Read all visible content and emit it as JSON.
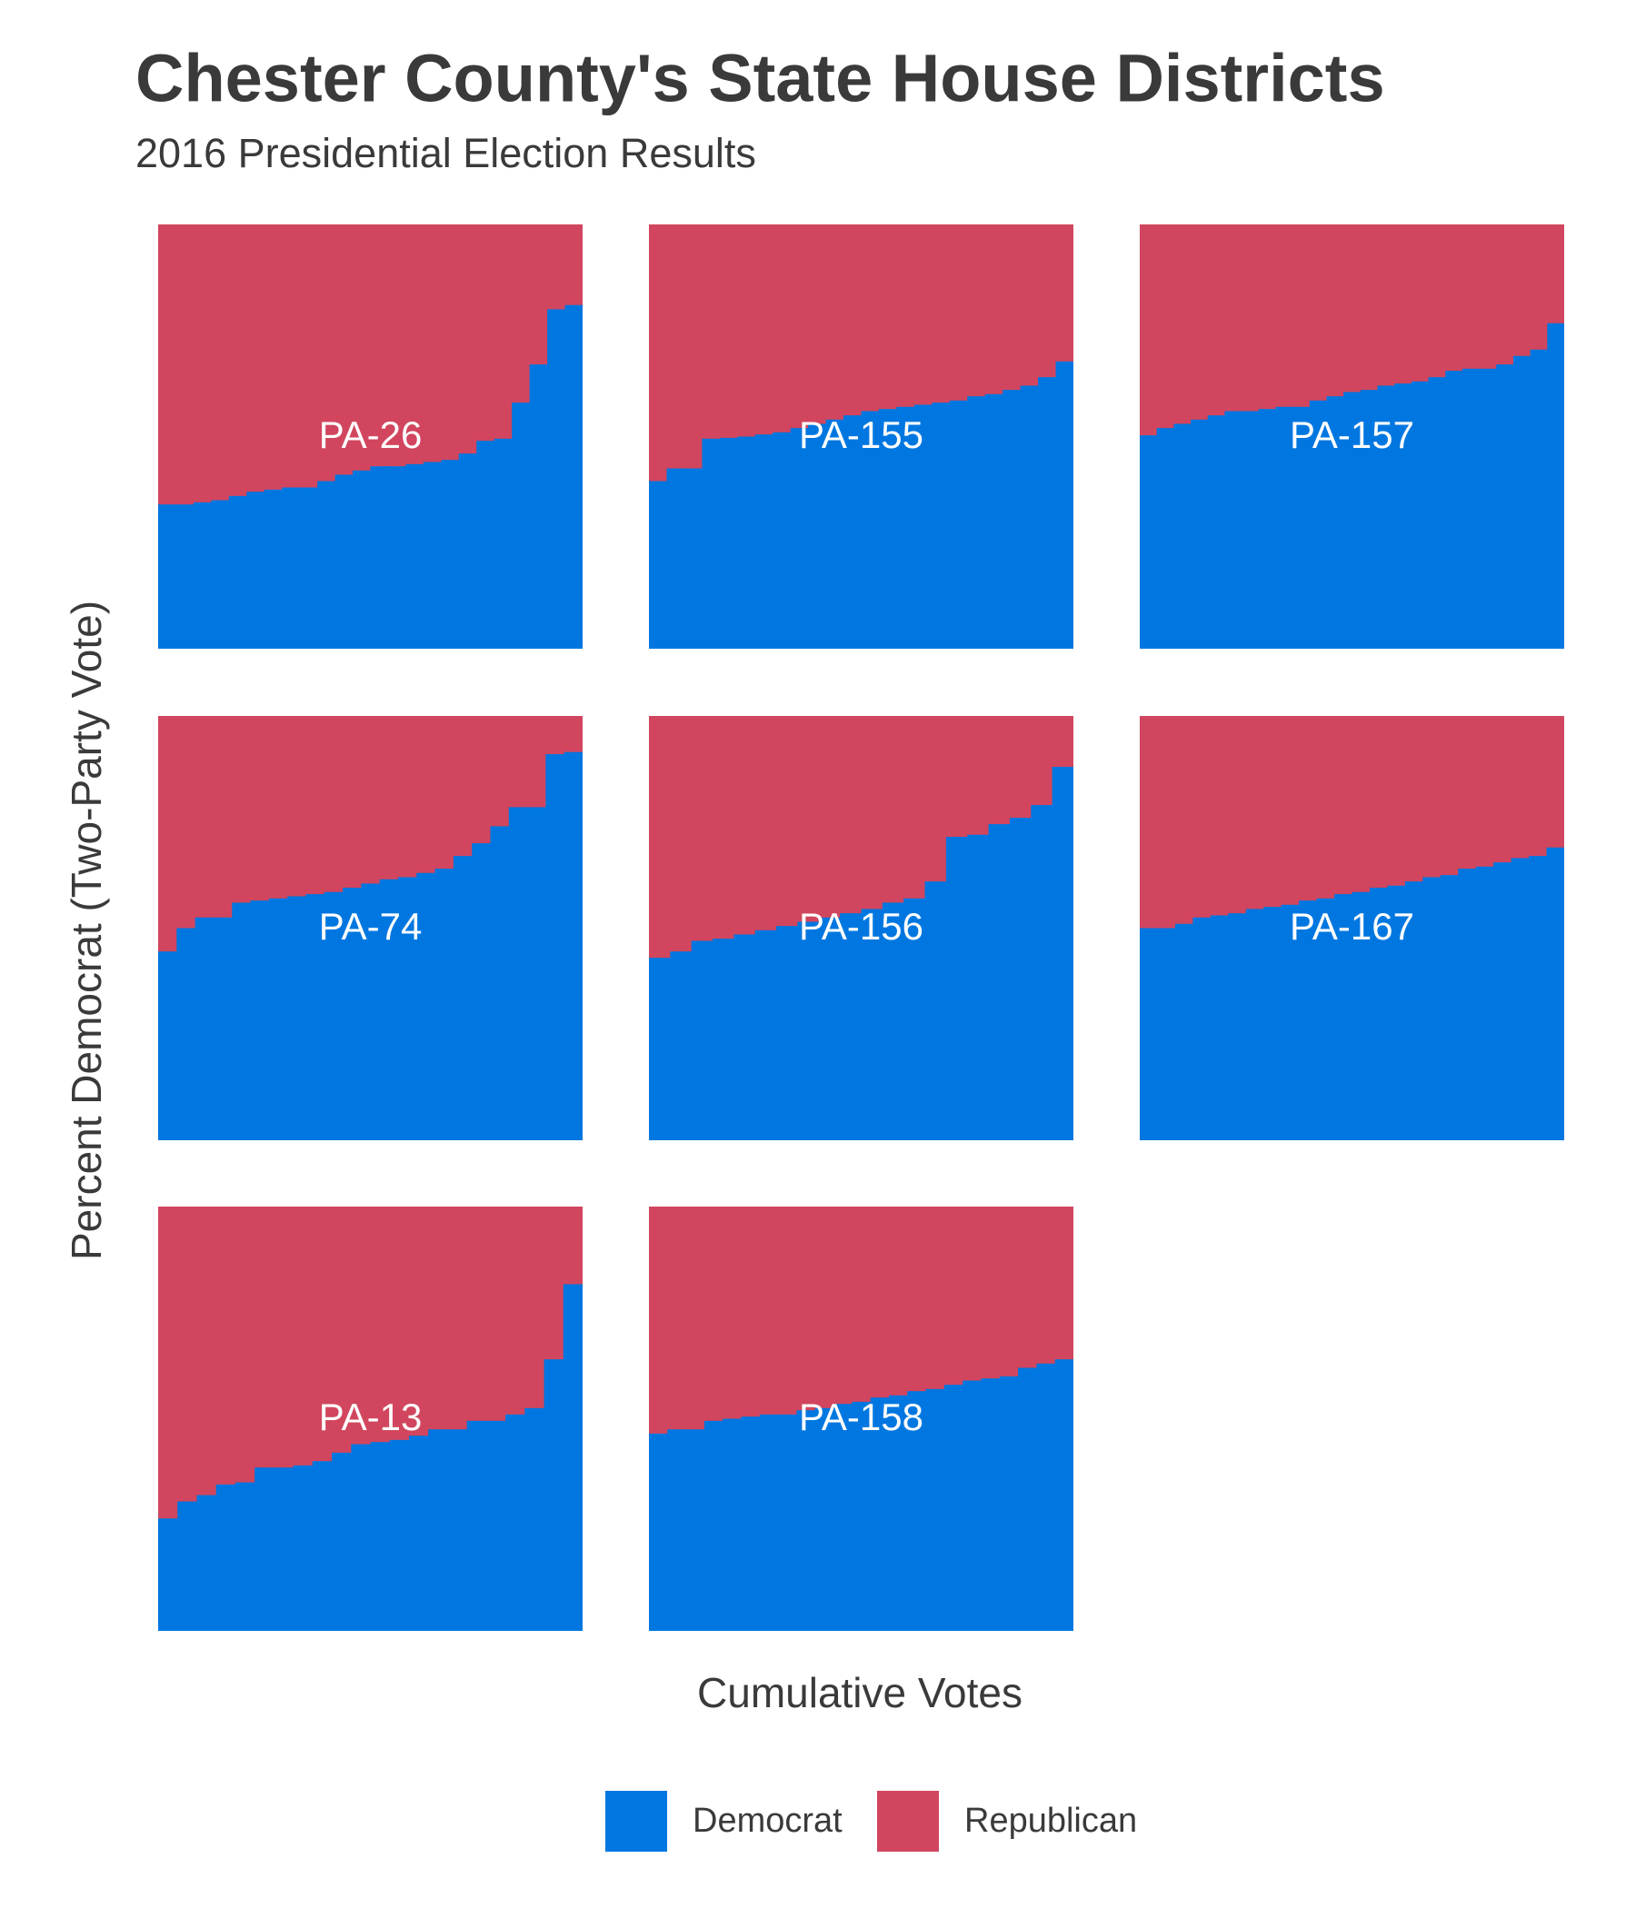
{
  "chart_data": {
    "type": "step-area",
    "title": "Chester County's State House Districts",
    "subtitle": "2016 Presidential Election Results",
    "x_label": "Cumulative Votes",
    "y_label": "Percent Democrat (Two-Party Vote)",
    "ylim": [
      0,
      100
    ],
    "series": [
      {
        "name": "Democrat",
        "color": "#0077e0"
      },
      {
        "name": "Republican",
        "color": "#d1465e"
      }
    ],
    "panels": [
      {
        "label": "PA-26",
        "values": [
          34,
          34,
          34.5,
          35,
          36,
          37,
          37.5,
          38,
          38,
          39.5,
          41,
          42,
          43,
          43,
          43.5,
          44,
          44.5,
          46,
          49,
          49.5,
          58,
          67,
          80,
          81
        ]
      },
      {
        "label": "PA-155",
        "values": [
          39.5,
          42.5,
          42.5,
          49.5,
          49.7,
          50,
          50.5,
          51,
          52,
          53,
          54,
          55,
          56,
          56.5,
          57,
          57.5,
          58,
          58.5,
          59.5,
          60,
          61,
          62,
          64,
          67.7
        ]
      },
      {
        "label": "PA-157",
        "values": [
          50.3,
          52,
          53,
          54,
          55,
          56,
          56,
          56.5,
          57,
          57,
          58.5,
          59.5,
          60.5,
          61,
          62,
          62.5,
          63,
          64,
          65.5,
          66,
          66,
          67,
          69,
          70.5,
          76.7
        ]
      },
      {
        "label": "PA-74",
        "values": [
          44.5,
          50,
          52.5,
          52.5,
          56,
          56.5,
          57,
          57.5,
          58,
          58.5,
          59.5,
          60.5,
          61.5,
          62,
          63,
          64,
          67,
          70,
          74,
          78.5,
          78.5,
          91,
          91.5
        ]
      },
      {
        "label": "PA-156",
        "values": [
          43,
          44.5,
          47,
          47.5,
          48.5,
          49.5,
          50.5,
          51.5,
          52.5,
          53.5,
          54.5,
          56,
          57,
          61,
          71.5,
          72,
          74.5,
          76,
          79,
          88
        ]
      },
      {
        "label": "PA-167",
        "values": [
          50,
          50,
          51,
          52.5,
          53,
          53.5,
          54.5,
          55,
          55.5,
          56.5,
          57,
          58,
          58.5,
          59.5,
          60,
          61,
          62,
          62.5,
          64,
          64.5,
          65.5,
          66.5,
          67,
          69
        ]
      },
      {
        "label": "PA-13",
        "values": [
          26.5,
          30.5,
          32,
          34.5,
          35,
          38.5,
          38.5,
          39,
          40,
          42,
          44,
          44.5,
          45,
          46,
          47.5,
          47.5,
          49.5,
          49.5,
          51,
          52.5,
          64,
          81.7
        ]
      },
      {
        "label": "PA-158",
        "values": [
          46.5,
          47.5,
          47.5,
          49.5,
          50,
          50.5,
          51,
          51,
          52,
          52.5,
          53.5,
          54,
          55,
          55.5,
          56.5,
          57,
          58,
          59,
          59.5,
          60,
          62,
          63,
          64
        ]
      }
    ]
  }
}
